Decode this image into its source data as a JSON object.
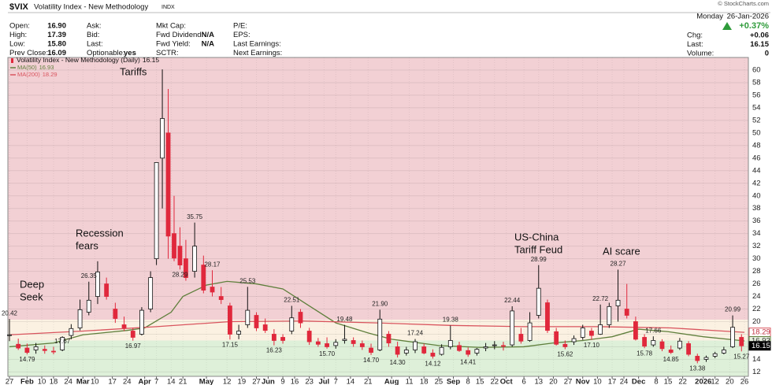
{
  "header": {
    "symbol": "$VIX",
    "name": "Volatility Index - New Methodology",
    "exchange": "INDX",
    "copyright": "© StockCharts.com",
    "fields": [
      {
        "label": "Open:",
        "value": "16.90"
      },
      {
        "label": "High:",
        "value": "17.39"
      },
      {
        "label": "Low:",
        "value": "15.80"
      },
      {
        "label": "Prev Close:",
        "value": "16.09"
      },
      {
        "label": "Ask:"
      },
      {
        "label": "Bid:"
      },
      {
        "label": "Last:"
      },
      {
        "label": "Optionable:",
        "value": "yes"
      },
      {
        "label": "Mkt Cap:"
      },
      {
        "label": "Fwd Dividend:",
        "value": "N/A"
      },
      {
        "label": "Fwd Yield:",
        "value": "N/A"
      },
      {
        "label": "SCTR:"
      },
      {
        "label": "P/E:"
      },
      {
        "label": "EPS:"
      },
      {
        "label": "Last Earnings:"
      },
      {
        "label": "Next Earnings:"
      }
    ],
    "day": "Monday",
    "date": "26-Jan-2026",
    "change_pct": "+0.37%",
    "right_fields": [
      {
        "label": "Chg:",
        "value": "+0.06"
      },
      {
        "label": "Last:",
        "value": "16.15"
      },
      {
        "label": "Volume:",
        "value": "0"
      }
    ]
  },
  "chart_data": {
    "type": "candlestick",
    "title": "Volatility Index - New Methodology (Daily)",
    "up_color": "#111111",
    "down_color": "#e0283c",
    "grid": true,
    "xlim": [
      0,
      250
    ],
    "ylim": [
      11.3,
      62
    ],
    "yticks": [
      12,
      14,
      16,
      18,
      20,
      22,
      24,
      26,
      28,
      30,
      32,
      34,
      36,
      38,
      40,
      42,
      44,
      46,
      48,
      50,
      52,
      54,
      56,
      58,
      60
    ],
    "xticks": [
      {
        "value": 0,
        "label": "27"
      },
      {
        "value": 6,
        "label": "Feb"
      },
      {
        "value": 11,
        "label": "10"
      },
      {
        "value": 15,
        "label": "18"
      },
      {
        "value": 20,
        "label": "24"
      },
      {
        "value": 25,
        "label": "Mar"
      },
      {
        "value": 29,
        "label": "10"
      },
      {
        "value": 35,
        "label": "17"
      },
      {
        "value": 40,
        "label": "24"
      },
      {
        "value": 46,
        "label": "Apr"
      },
      {
        "value": 50,
        "label": "7"
      },
      {
        "value": 55,
        "label": "14"
      },
      {
        "value": 59,
        "label": "21"
      },
      {
        "value": 67,
        "label": "May"
      },
      {
        "value": 74,
        "label": "12"
      },
      {
        "value": 79,
        "label": "19"
      },
      {
        "value": 84,
        "label": "27"
      },
      {
        "value": 88,
        "label": "Jun"
      },
      {
        "value": 93,
        "label": "9"
      },
      {
        "value": 97,
        "label": "16"
      },
      {
        "value": 102,
        "label": "23"
      },
      {
        "value": 107,
        "label": "Jul"
      },
      {
        "value": 111,
        "label": "7"
      },
      {
        "value": 116,
        "label": "14"
      },
      {
        "value": 122,
        "label": "21"
      },
      {
        "value": 130,
        "label": "Aug"
      },
      {
        "value": 136,
        "label": "11"
      },
      {
        "value": 141,
        "label": "18"
      },
      {
        "value": 146,
        "label": "25"
      },
      {
        "value": 151,
        "label": "Sep"
      },
      {
        "value": 156,
        "label": "8"
      },
      {
        "value": 160,
        "label": "15"
      },
      {
        "value": 165,
        "label": "22"
      },
      {
        "value": 169,
        "label": "Oct"
      },
      {
        "value": 175,
        "label": "6"
      },
      {
        "value": 180,
        "label": "13"
      },
      {
        "value": 185,
        "label": "20"
      },
      {
        "value": 190,
        "label": "27"
      },
      {
        "value": 195,
        "label": "Nov"
      },
      {
        "value": 200,
        "label": "10"
      },
      {
        "value": 205,
        "label": "17"
      },
      {
        "value": 209,
        "label": "24"
      },
      {
        "value": 214,
        "label": "Dec"
      },
      {
        "value": 220,
        "label": "8"
      },
      {
        "value": 224,
        "label": "15"
      },
      {
        "value": 229,
        "label": "22"
      },
      {
        "value": 236,
        "label": "2026"
      },
      {
        "value": 240,
        "label": "12"
      },
      {
        "value": 245,
        "label": "20"
      },
      {
        "value": 250,
        "label": "26"
      }
    ],
    "bands": [
      {
        "from": 20.3,
        "to": 62,
        "color": "#f2d0d4"
      },
      {
        "from": 17,
        "to": 20.3,
        "color": "#fbf1e2"
      },
      {
        "from": 11.3,
        "to": 17,
        "color": "#def0d9"
      }
    ],
    "x": [
      0,
      3,
      6,
      9,
      12,
      15,
      18,
      21,
      24,
      27,
      30,
      33,
      36,
      39,
      42,
      45,
      48,
      50,
      52,
      54,
      56,
      58,
      60,
      63,
      66,
      69,
      72,
      75,
      78,
      81,
      84,
      87,
      90,
      93,
      96,
      99,
      102,
      105,
      108,
      111,
      114,
      117,
      120,
      123,
      126,
      129,
      132,
      135,
      138,
      141,
      144,
      147,
      150,
      153,
      156,
      159,
      162,
      165,
      168,
      171,
      174,
      177,
      180,
      183,
      186,
      189,
      192,
      195,
      198,
      201,
      204,
      207,
      210,
      213,
      216,
      219,
      222,
      225,
      228,
      231,
      234,
      237,
      240,
      243,
      246,
      249
    ],
    "open": [
      17.9,
      16.4,
      15.8,
      15.5,
      15.6,
      15.3,
      15.5,
      17.8,
      19.0,
      21.5,
      24.0,
      26.0,
      22.0,
      19.5,
      18.5,
      18.0,
      22.0,
      30.0,
      46.0,
      50.0,
      34.0,
      32.0,
      30.0,
      28.0,
      29.0,
      25.5,
      24.0,
      22.5,
      18.0,
      19.5,
      21.0,
      19.5,
      18.0,
      17.5,
      18.5,
      21.5,
      18.5,
      16.8,
      16.5,
      16.2,
      17.0,
      17.0,
      16.5,
      15.8,
      15.5,
      18.0,
      16.0,
      15.0,
      15.5,
      16.0,
      15.0,
      14.8,
      16.0,
      16.2,
      15.4,
      15.0,
      15.8,
      16.2,
      16.2,
      16.3,
      18.0,
      17.0,
      21.0,
      23.0,
      18.4,
      16.4,
      16.8,
      17.5,
      18.5,
      18.0,
      19.5,
      22.5,
      22.0,
      20.0,
      17.5,
      16.3,
      16.8,
      15.5,
      15.8,
      16.5,
      14.5,
      14.0,
      14.5,
      15.0,
      16.0,
      17.5
    ],
    "high": [
      20.42,
      17.3,
      16.5,
      16.6,
      16.2,
      16.0,
      17.67,
      19.6,
      23.5,
      26.35,
      29.6,
      27.0,
      23.0,
      20.8,
      19.0,
      22.3,
      28.0,
      45.0,
      60.1,
      57.0,
      40.0,
      35.0,
      33.0,
      35.75,
      30.5,
      28.17,
      25.5,
      23.0,
      19.5,
      25.53,
      21.5,
      20.5,
      18.8,
      18.0,
      22.51,
      22.0,
      19.0,
      17.4,
      17.5,
      17.2,
      19.48,
      17.5,
      17.0,
      16.5,
      21.9,
      18.5,
      16.8,
      16.0,
      17.24,
      16.5,
      15.6,
      16.4,
      19.38,
      16.8,
      15.9,
      15.8,
      16.6,
      16.9,
      16.8,
      22.44,
      19.0,
      21.5,
      28.99,
      23.5,
      19.0,
      17.0,
      17.8,
      19.5,
      19.0,
      22.72,
      23.0,
      28.27,
      26.0,
      20.8,
      18.0,
      17.66,
      17.2,
      16.2,
      17.4,
      16.9,
      14.9,
      14.6,
      15.2,
      16.0,
      20.99,
      18.0
    ],
    "low": [
      16.9,
      15.5,
      14.79,
      14.9,
      14.9,
      14.8,
      15.3,
      17.2,
      18.6,
      21.0,
      22.8,
      23.5,
      19.8,
      18.5,
      16.97,
      17.8,
      21.5,
      29.0,
      38.0,
      30.0,
      29.6,
      28.29,
      26.5,
      27.0,
      24.5,
      24.0,
      22.8,
      17.15,
      17.2,
      19.0,
      18.5,
      18.2,
      16.23,
      16.5,
      18.0,
      19.0,
      16.3,
      16.0,
      15.7,
      15.7,
      16.5,
      16.0,
      15.5,
      14.7,
      15.3,
      16.0,
      14.3,
      14.6,
      15.0,
      14.8,
      14.12,
      14.6,
      15.6,
      15.2,
      14.41,
      14.6,
      15.3,
      15.6,
      15.4,
      16.0,
      16.5,
      16.8,
      20.5,
      18.2,
      16.2,
      15.62,
      16.3,
      17.1,
      17.1,
      17.9,
      19.0,
      20.0,
      20.5,
      17.0,
      15.78,
      16.0,
      15.3,
      14.85,
      15.5,
      14.5,
      13.38,
      13.6,
      14.2,
      14.8,
      15.8,
      15.27
    ],
    "close": [
      17.9,
      15.8,
      15.1,
      16.0,
      15.4,
      15.2,
      17.5,
      18.9,
      21.9,
      23.4,
      27.9,
      24.0,
      20.5,
      19.0,
      17.5,
      21.8,
      27.0,
      45.3,
      52.3,
      33.6,
      30.1,
      29.0,
      27.0,
      32.0,
      25.0,
      24.7,
      23.5,
      18.0,
      18.5,
      21.8,
      19.0,
      18.6,
      17.0,
      17.0,
      20.6,
      19.8,
      16.8,
      16.4,
      16.0,
      16.7,
      17.2,
      16.5,
      16.0,
      15.1,
      20.4,
      16.6,
      14.8,
      15.5,
      16.8,
      15.0,
      14.5,
      15.9,
      17.0,
      15.4,
      14.8,
      15.6,
      16.0,
      16.3,
      16.1,
      21.7,
      16.9,
      19.8,
      25.3,
      18.6,
      16.4,
      16.0,
      17.3,
      19.0,
      17.8,
      19.5,
      22.4,
      23.4,
      21.0,
      17.2,
      16.1,
      17.0,
      15.7,
      15.1,
      16.9,
      14.8,
      13.8,
      14.3,
      14.9,
      15.5,
      19.1,
      16.15
    ],
    "series": [
      {
        "name": "MA(50)",
        "color": "#5f7f3c",
        "x": [
          0,
          15,
          25,
          40,
          46,
          55,
          59,
          67,
          74,
          84,
          93,
          102,
          111,
          122,
          130,
          146,
          160,
          175,
          185,
          195,
          205,
          214,
          224,
          236,
          250
        ],
        "values": [
          16.0,
          16.6,
          17.9,
          18.6,
          19.0,
          21.5,
          24.0,
          25.8,
          26.4,
          26.0,
          25.2,
          22.5,
          19.8,
          18.2,
          17.2,
          16.2,
          15.9,
          16.0,
          16.6,
          17.0,
          17.6,
          18.8,
          18.4,
          17.6,
          16.93
        ]
      },
      {
        "name": "MA(200)",
        "color": "#d9545e",
        "x": [
          0,
          25,
          50,
          75,
          100,
          125,
          150,
          175,
          200,
          225,
          250
        ],
        "values": [
          17.9,
          18.5,
          19.2,
          20.0,
          20.1,
          19.8,
          19.4,
          19.2,
          19.2,
          19.0,
          18.29
        ]
      }
    ],
    "annotations": [
      {
        "x": 0,
        "value": 20.42,
        "position": "above"
      },
      {
        "x": 6,
        "value": 14.79,
        "position": "below"
      },
      {
        "x": 18,
        "value": 17.67,
        "position": "below"
      },
      {
        "x": 27,
        "value": 26.35,
        "position": "above"
      },
      {
        "x": 42,
        "value": 16.97,
        "position": "below"
      },
      {
        "x": 58,
        "value": 28.29,
        "position": "below"
      },
      {
        "x": 63,
        "value": 35.75,
        "position": "above"
      },
      {
        "x": 69,
        "value": 28.17,
        "position": "above"
      },
      {
        "x": 75,
        "value": 17.15,
        "position": "below"
      },
      {
        "x": 81,
        "value": 25.53,
        "position": "above"
      },
      {
        "x": 90,
        "value": 16.23,
        "position": "below"
      },
      {
        "x": 96,
        "value": 22.51,
        "position": "above"
      },
      {
        "x": 108,
        "value": 15.7,
        "label": "15.70",
        "position": "below"
      },
      {
        "x": 114,
        "value": 19.48,
        "position": "above"
      },
      {
        "x": 123,
        "value": 14.7,
        "label": "14.70",
        "position": "below"
      },
      {
        "x": 126,
        "value": 21.9,
        "label": "21.90",
        "position": "above"
      },
      {
        "x": 132,
        "value": 14.3,
        "label": "14.30",
        "position": "below"
      },
      {
        "x": 138,
        "value": 17.24,
        "position": "above"
      },
      {
        "x": 144,
        "value": 14.12,
        "position": "below"
      },
      {
        "x": 150,
        "value": 19.38,
        "position": "above"
      },
      {
        "x": 156,
        "value": 14.41,
        "position": "below"
      },
      {
        "x": 171,
        "value": 22.44,
        "position": "above"
      },
      {
        "x": 180,
        "value": 28.99,
        "position": "above"
      },
      {
        "x": 189,
        "value": 15.62,
        "position": "below"
      },
      {
        "x": 198,
        "value": 17.1,
        "label": "17.10",
        "position": "below"
      },
      {
        "x": 201,
        "value": 22.72,
        "position": "above"
      },
      {
        "x": 207,
        "value": 28.27,
        "position": "above"
      },
      {
        "x": 216,
        "value": 15.78,
        "position": "below"
      },
      {
        "x": 219,
        "value": 17.66,
        "position": "above"
      },
      {
        "x": 225,
        "value": 14.85,
        "position": "below"
      },
      {
        "x": 234,
        "value": 13.38,
        "position": "below"
      },
      {
        "x": 246,
        "value": 20.99,
        "position": "above"
      },
      {
        "x": 249,
        "value": 15.27,
        "position": "below"
      }
    ],
    "events": [
      {
        "lines": [
          "Deep",
          "Seek"
        ]
      },
      {
        "lines": [
          "Recession",
          "fears"
        ]
      },
      {
        "lines": [
          "Tariffs"
        ]
      },
      {
        "lines": [
          "US-China",
          "Tariff Feud"
        ]
      },
      {
        "lines": [
          "AI scare"
        ]
      }
    ]
  }
}
